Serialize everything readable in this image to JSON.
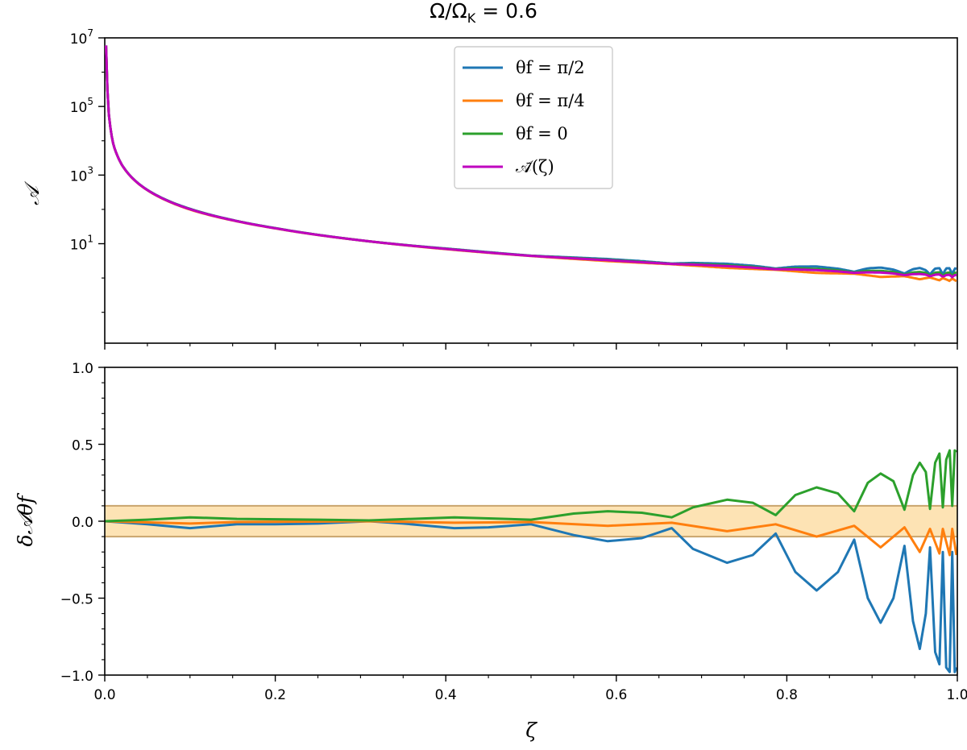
{
  "figure": {
    "title": "Ω/Ω",
    "title_sub": "K",
    "title_tail": " = 0.6"
  },
  "chart_data": [
    {
      "type": "line",
      "panel": "top",
      "ylabel": "𝒜",
      "yscale": "log",
      "xlim": [
        0.0,
        1.0
      ],
      "ylim_exponents": [
        -1.9,
        7.0
      ],
      "ytick_labels": [
        {
          "base": "10",
          "exp": "1",
          "value": 10
        },
        {
          "base": "10",
          "exp": "3",
          "value": 1000
        },
        {
          "base": "10",
          "exp": "5",
          "value": 100000
        },
        {
          "base": "10",
          "exp": "7",
          "value": 10000000
        }
      ],
      "legend": {
        "placement": "top-center",
        "entries": [
          {
            "name": "θf = π/2",
            "color": "#1f77b4"
          },
          {
            "name": "θf = π/4",
            "color": "#ff7f0e"
          },
          {
            "name": "θf = 0",
            "color": "#2ca02c"
          },
          {
            "name": "𝒜̄(ζ)",
            "color": "#bf00bf"
          }
        ]
      },
      "model": {
        "description_free": true,
        "A_bar_points": [
          [
            0.0015,
            6000000
          ],
          [
            0.005,
            50000
          ],
          [
            0.01,
            8000
          ],
          [
            0.02,
            2000
          ],
          [
            0.04,
            550
          ],
          [
            0.06,
            260
          ],
          [
            0.1,
            100
          ],
          [
            0.15,
            48
          ],
          [
            0.2,
            28
          ],
          [
            0.3,
            12.5
          ],
          [
            0.4,
            7.0
          ],
          [
            0.5,
            4.4
          ],
          [
            0.6,
            3.1
          ],
          [
            0.7,
            2.3
          ],
          [
            0.8,
            1.7
          ],
          [
            0.9,
            1.3
          ],
          [
            1.0,
            1.0
          ]
        ]
      }
    },
    {
      "type": "line",
      "panel": "bottom",
      "xlabel": "ζ",
      "ylabel": "δ𝒜θf",
      "xlim": [
        0.0,
        1.0
      ],
      "ylim": [
        -1.0,
        1.0
      ],
      "xtick_labels": [
        "0.0",
        "0.2",
        "0.4",
        "0.6",
        "0.8",
        "1.0"
      ],
      "xticks": [
        0.0,
        0.2,
        0.4,
        0.6,
        0.8,
        1.0
      ],
      "ytick_labels": [
        "1.0",
        "0.5",
        "0.0",
        "−0.5",
        "−1.0"
      ],
      "yticks": [
        1.0,
        0.5,
        0.0,
        -0.5,
        -1.0
      ],
      "band": {
        "ymin": -0.1,
        "ymax": 0.1,
        "color": "#fde3b4",
        "edge": "#c9a56e"
      },
      "series": [
        {
          "name": "θf = π/2",
          "color": "#1f77b4",
          "points": [
            [
              0.0,
              0.0
            ],
            [
              0.05,
              -0.02
            ],
            [
              0.1,
              -0.045
            ],
            [
              0.155,
              -0.02
            ],
            [
              0.2,
              -0.02
            ],
            [
              0.25,
              -0.015
            ],
            [
              0.31,
              0.0
            ],
            [
              0.35,
              -0.015
            ],
            [
              0.41,
              -0.045
            ],
            [
              0.45,
              -0.04
            ],
            [
              0.5,
              -0.02
            ],
            [
              0.55,
              -0.09
            ],
            [
              0.59,
              -0.13
            ],
            [
              0.63,
              -0.11
            ],
            [
              0.665,
              -0.045
            ],
            [
              0.69,
              -0.18
            ],
            [
              0.73,
              -0.27
            ],
            [
              0.76,
              -0.22
            ],
            [
              0.787,
              -0.08
            ],
            [
              0.81,
              -0.33
            ],
            [
              0.835,
              -0.45
            ],
            [
              0.86,
              -0.33
            ],
            [
              0.879,
              -0.12
            ],
            [
              0.895,
              -0.5
            ],
            [
              0.91,
              -0.66
            ],
            [
              0.925,
              -0.5
            ],
            [
              0.938,
              -0.16
            ],
            [
              0.948,
              -0.65
            ],
            [
              0.956,
              -0.83
            ],
            [
              0.963,
              -0.6
            ],
            [
              0.968,
              -0.17
            ],
            [
              0.974,
              -0.85
            ],
            [
              0.979,
              -0.93
            ],
            [
              0.983,
              -0.2
            ],
            [
              0.987,
              -0.95
            ],
            [
              0.991,
              -0.98
            ],
            [
              0.994,
              -0.2
            ],
            [
              0.997,
              -0.98
            ],
            [
              0.999,
              -0.95
            ]
          ]
        },
        {
          "name": "θf = π/4",
          "color": "#ff7f0e",
          "points": [
            [
              0.0,
              0.0
            ],
            [
              0.1,
              -0.015
            ],
            [
              0.155,
              -0.005
            ],
            [
              0.31,
              0.0
            ],
            [
              0.41,
              -0.01
            ],
            [
              0.5,
              -0.005
            ],
            [
              0.59,
              -0.03
            ],
            [
              0.665,
              -0.01
            ],
            [
              0.73,
              -0.065
            ],
            [
              0.787,
              -0.02
            ],
            [
              0.835,
              -0.1
            ],
            [
              0.879,
              -0.03
            ],
            [
              0.91,
              -0.17
            ],
            [
              0.938,
              -0.04
            ],
            [
              0.956,
              -0.2
            ],
            [
              0.968,
              -0.05
            ],
            [
              0.979,
              -0.21
            ],
            [
              0.983,
              -0.05
            ],
            [
              0.991,
              -0.22
            ],
            [
              0.994,
              -0.05
            ],
            [
              0.999,
              -0.22
            ]
          ]
        },
        {
          "name": "θf = 0",
          "color": "#2ca02c",
          "points": [
            [
              0.0,
              0.0
            ],
            [
              0.05,
              0.01
            ],
            [
              0.1,
              0.025
            ],
            [
              0.155,
              0.015
            ],
            [
              0.25,
              0.01
            ],
            [
              0.31,
              0.005
            ],
            [
              0.41,
              0.025
            ],
            [
              0.5,
              0.01
            ],
            [
              0.55,
              0.05
            ],
            [
              0.59,
              0.065
            ],
            [
              0.63,
              0.055
            ],
            [
              0.665,
              0.025
            ],
            [
              0.69,
              0.09
            ],
            [
              0.73,
              0.14
            ],
            [
              0.76,
              0.12
            ],
            [
              0.787,
              0.04
            ],
            [
              0.81,
              0.17
            ],
            [
              0.835,
              0.22
            ],
            [
              0.86,
              0.18
            ],
            [
              0.879,
              0.065
            ],
            [
              0.895,
              0.25
            ],
            [
              0.91,
              0.31
            ],
            [
              0.925,
              0.26
            ],
            [
              0.938,
              0.075
            ],
            [
              0.948,
              0.3
            ],
            [
              0.956,
              0.38
            ],
            [
              0.963,
              0.32
            ],
            [
              0.968,
              0.08
            ],
            [
              0.974,
              0.38
            ],
            [
              0.979,
              0.44
            ],
            [
              0.983,
              0.09
            ],
            [
              0.987,
              0.4
            ],
            [
              0.991,
              0.46
            ],
            [
              0.994,
              0.1
            ],
            [
              0.997,
              0.46
            ],
            [
              0.999,
              0.45
            ]
          ]
        }
      ]
    }
  ]
}
